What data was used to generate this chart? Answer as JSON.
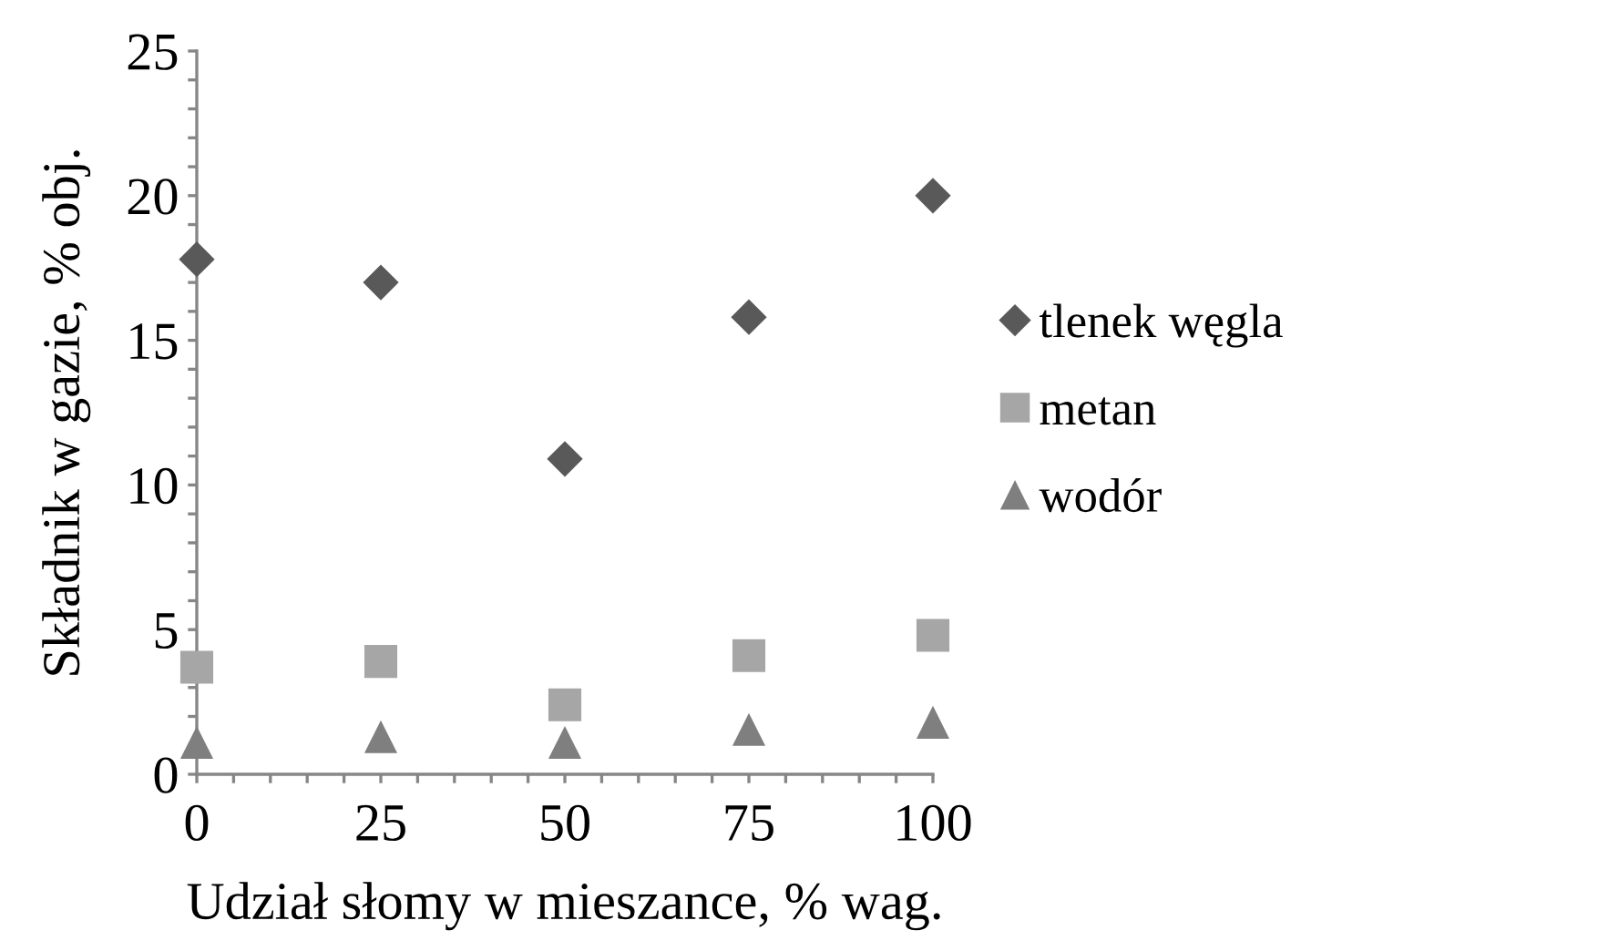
{
  "chart_data": {
    "type": "scatter",
    "xlabel": "Udział słomy w mieszance, % wag.",
    "ylabel": "Składnik w gazie, % obj.",
    "x": [
      0,
      25,
      50,
      75,
      100
    ],
    "series": [
      {
        "name": "tlenek węgla",
        "color": "#595959",
        "marker": "diamond",
        "values": [
          17.8,
          17.0,
          10.9,
          15.8,
          20.0
        ]
      },
      {
        "name": "metan",
        "color": "#a6a6a6",
        "marker": "square",
        "values": [
          3.7,
          3.9,
          2.4,
          4.1,
          4.8
        ]
      },
      {
        "name": "wodór",
        "color": "#7f7f7f",
        "marker": "triangle",
        "values": [
          1.1,
          1.3,
          1.1,
          1.55,
          1.8
        ]
      }
    ],
    "xlim": [
      0,
      100
    ],
    "ylim": [
      0,
      25
    ],
    "xticks": [
      0,
      {
        "value": 5,
        "label": null
      },
      {
        "value": 10,
        "label": null
      },
      {
        "value": 15,
        "label": null
      },
      {
        "value": 20,
        "label": null
      },
      25,
      {
        "value": 30,
        "label": null
      },
      {
        "value": 35,
        "label": null
      },
      {
        "value": 40,
        "label": null
      },
      {
        "value": 45,
        "label": null
      },
      50,
      {
        "value": 55,
        "label": null
      },
      {
        "value": 60,
        "label": null
      },
      {
        "value": 65,
        "label": null
      },
      {
        "value": 70,
        "label": null
      },
      75,
      {
        "value": 80,
        "label": null
      },
      {
        "value": 85,
        "label": null
      },
      {
        "value": 90,
        "label": null
      },
      {
        "value": 95,
        "label": null
      },
      100
    ],
    "yticks": [
      0,
      {
        "value": 1,
        "label": null
      },
      {
        "value": 2,
        "label": null
      },
      {
        "value": 3,
        "label": null
      },
      {
        "value": 4,
        "label": null
      },
      5,
      {
        "value": 6,
        "label": null
      },
      {
        "value": 7,
        "label": null
      },
      {
        "value": 8,
        "label": null
      },
      {
        "value": 9,
        "label": null
      },
      10,
      {
        "value": 11,
        "label": null
      },
      {
        "value": 12,
        "label": null
      },
      {
        "value": 13,
        "label": null
      },
      {
        "value": 14,
        "label": null
      },
      15,
      {
        "value": 16,
        "label": null
      },
      {
        "value": 17,
        "label": null
      },
      {
        "value": 18,
        "label": null
      },
      {
        "value": 19,
        "label": null
      },
      20,
      {
        "value": 21,
        "label": null
      },
      {
        "value": 22,
        "label": null
      },
      {
        "value": 23,
        "label": null
      },
      {
        "value": 24,
        "label": null
      },
      25
    ],
    "grid": false,
    "legend": "right"
  }
}
